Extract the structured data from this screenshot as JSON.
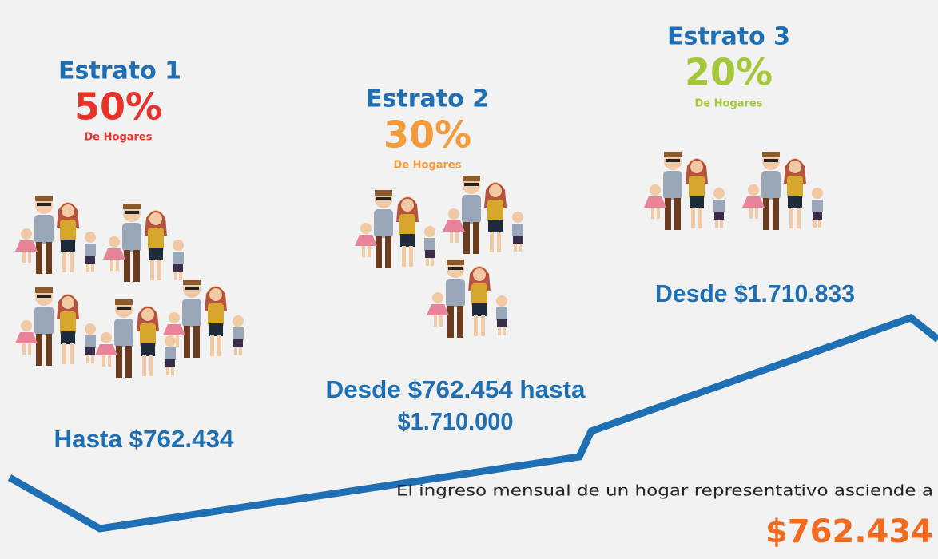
{
  "strata": [
    {
      "name": "Estrato 1",
      "percent": "50%",
      "caption": "De Hogares",
      "range": [
        "Hasta $762.434"
      ]
    },
    {
      "name": "Estrato 2",
      "percent": "30%",
      "caption": "De Hogares",
      "range": [
        "Desde $762.454 hasta",
        "$1.710.000"
      ]
    },
    {
      "name": "Estrato 3",
      "percent": "20%",
      "caption": "De Hogares",
      "range": [
        "Desde $1.710.833"
      ]
    }
  ],
  "footer": {
    "text": "El ingreso mensual de un hogar representativo asciende a",
    "amount": "$762.434"
  }
}
